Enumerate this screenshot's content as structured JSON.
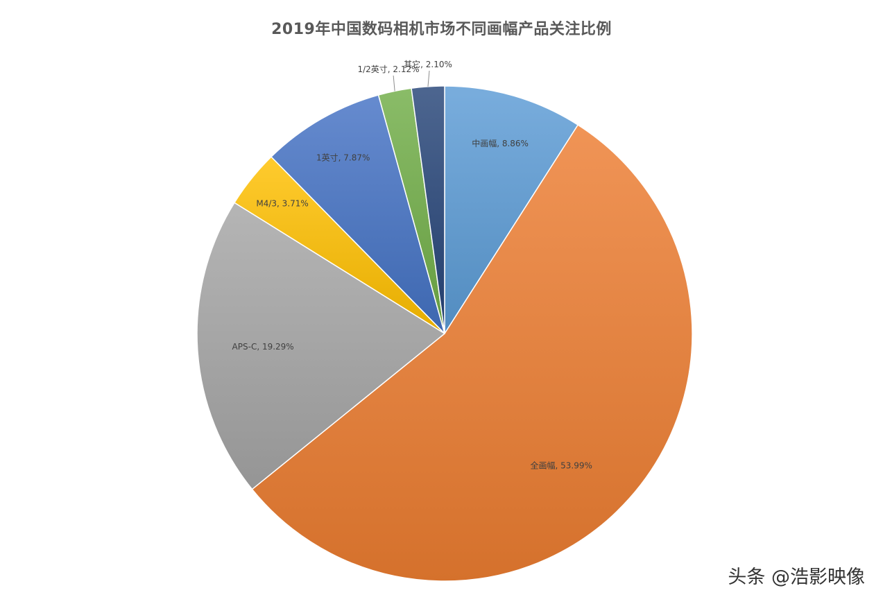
{
  "chart_data": {
    "type": "pie",
    "title": "2019年中国数码相机市场不同画幅产品关注比例",
    "slices": [
      {
        "name": "中画幅",
        "value": 8.86,
        "label": "中画幅, 8.86%",
        "color": "#5B9BD5"
      },
      {
        "name": "全画幅",
        "value": 53.99,
        "label": "全画幅, 53.99%",
        "color": "#ED7D31"
      },
      {
        "name": "APS-C",
        "value": 19.29,
        "label": "APS-C, 19.29%",
        "color": "#A5A5A5"
      },
      {
        "name": "M4/3",
        "value": 3.71,
        "label": "M4/3, 3.71%",
        "color": "#FFC000"
      },
      {
        "name": "1英寸",
        "value": 7.87,
        "label": "1英寸, 7.87%",
        "color": "#4472C4"
      },
      {
        "name": "1/2英寸",
        "value": 2.12,
        "label": "1/2英寸, 2.12%",
        "color": "#70AD47"
      },
      {
        "name": "其它",
        "value": 2.1,
        "label": "其它, 2.10%",
        "color": "#264478"
      }
    ],
    "start_angle": "12 o'clock",
    "direction": "clockwise",
    "legend": "none"
  },
  "watermark": "头条 @浩影映像"
}
